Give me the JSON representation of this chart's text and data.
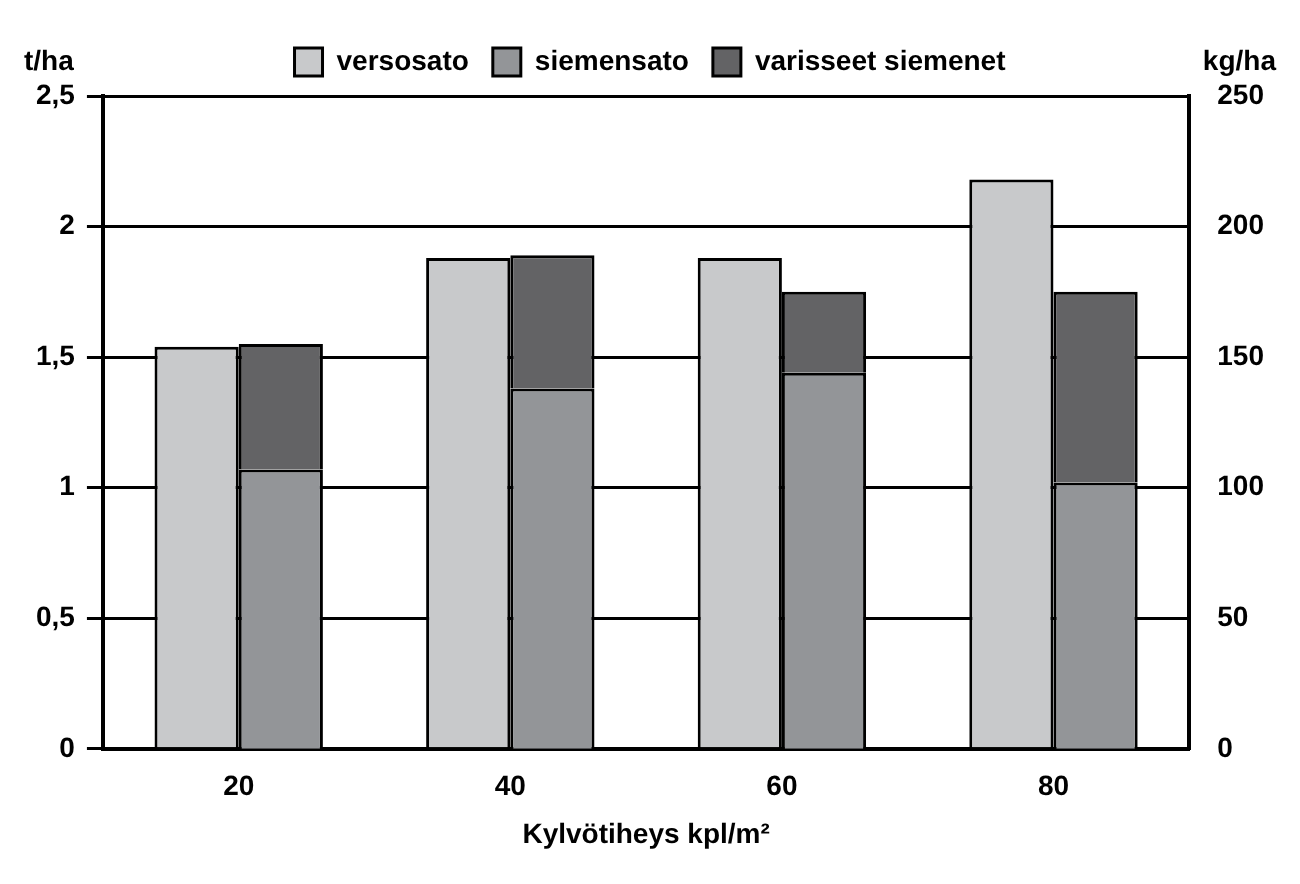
{
  "chart_data": {
    "type": "bar",
    "categories": [
      "20",
      "40",
      "60",
      "80"
    ],
    "xlabel": "Kylvötiheys kpl/m²",
    "ylabel": "t/ha",
    "y2label": "kg/ha",
    "stacked": true,
    "series": [
      {
        "name": "versosato",
        "color": "#c8c9cb",
        "values": [
          1.54,
          1.88,
          1.88,
          2.18
        ]
      },
      {
        "name": "siemensato",
        "color": "#939598",
        "values": [
          107,
          138,
          144,
          102
        ],
        "axis": "y2"
      },
      {
        "name": "varisseet siemenet",
        "color": "#636365",
        "values": [
          48,
          51,
          31,
          73
        ],
        "axis": "y2"
      }
    ],
    "ylim": [
      0,
      2.5
    ],
    "yticks": [
      {
        "value": 0,
        "label": "0"
      },
      {
        "value": 0.5,
        "label": "0,5"
      },
      {
        "value": 1,
        "label": "1"
      },
      {
        "value": 1.5,
        "label": "1,5"
      },
      {
        "value": 2,
        "label": "2"
      },
      {
        "value": 2.5,
        "label": "2,5"
      }
    ],
    "y2lim": [
      0,
      250
    ],
    "y2ticks": [
      0,
      50,
      100,
      150,
      200,
      250
    ],
    "grid": "y",
    "legend": "top"
  }
}
